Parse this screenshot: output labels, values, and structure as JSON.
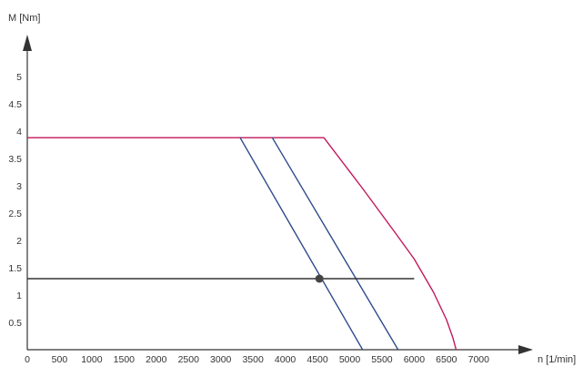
{
  "chart_data": {
    "type": "line",
    "xlabel": "n [1/min]",
    "ylabel": "M [Nm]",
    "xlim": [
      0,
      7500
    ],
    "ylim": [
      0,
      5.7
    ],
    "x_ticks": [
      0,
      500,
      1000,
      1500,
      2000,
      2500,
      3000,
      3500,
      4000,
      4500,
      5000,
      5500,
      6000,
      6500,
      7000
    ],
    "y_ticks": [
      0.5,
      1,
      1.5,
      2,
      2.5,
      3,
      3.5,
      4,
      4.5,
      5
    ],
    "series": [
      {
        "color": "#c2185b",
        "points": [
          [
            0,
            3.88
          ],
          [
            4600,
            3.88
          ],
          [
            5200,
            2.95
          ],
          [
            5700,
            2.15
          ],
          [
            6000,
            1.66
          ],
          [
            6300,
            1.05
          ],
          [
            6500,
            0.55
          ],
          [
            6600,
            0.22
          ],
          [
            6650,
            0
          ]
        ]
      },
      {
        "color": "#2e4a8c",
        "points": [
          [
            3300,
            3.88
          ],
          [
            5200,
            0
          ]
        ]
      },
      {
        "color": "#2e4a8c",
        "points": [
          [
            3800,
            3.88
          ],
          [
            5750,
            0
          ]
        ]
      },
      {
        "color": "#333333",
        "points": [
          [
            0,
            1.3
          ],
          [
            6000,
            1.3
          ]
        ]
      }
    ],
    "markers": [
      {
        "x": 4530,
        "y": 1.3,
        "color": "#444444"
      }
    ]
  }
}
